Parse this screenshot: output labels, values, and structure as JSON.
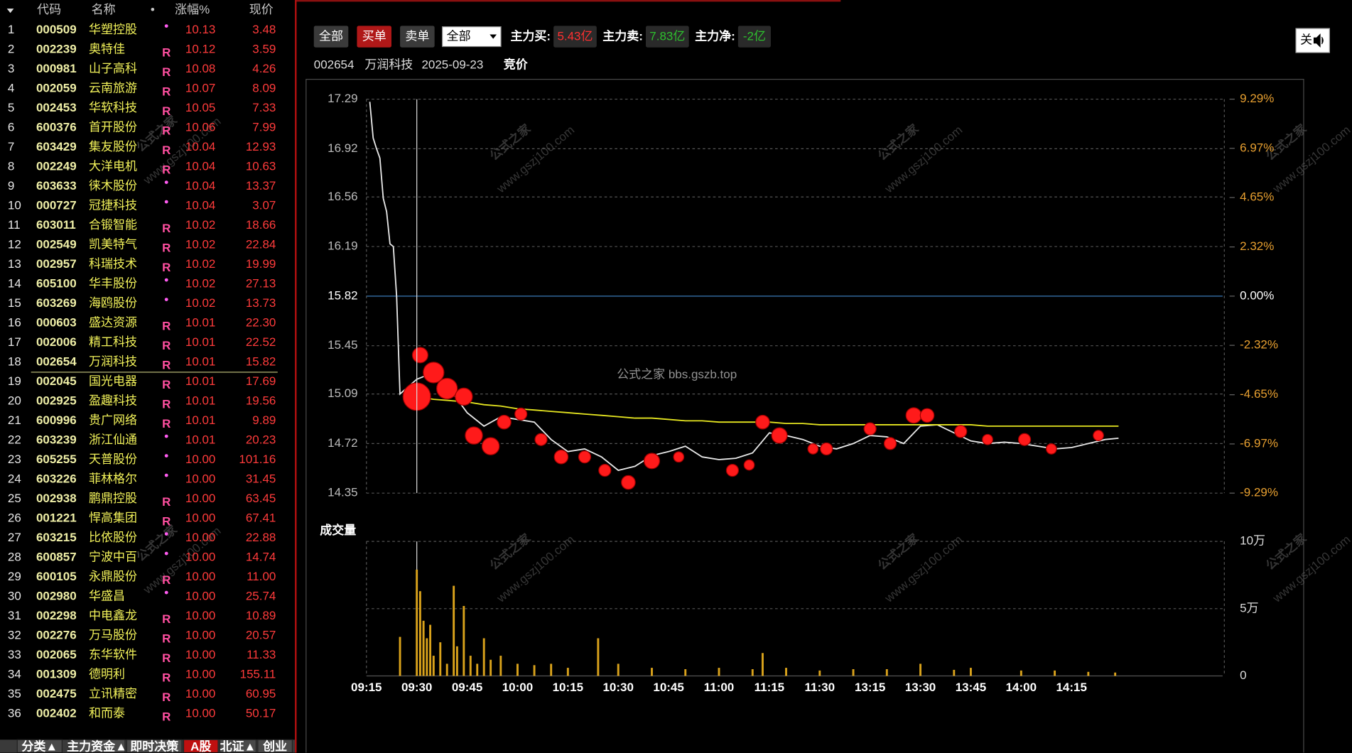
{
  "stock_list": {
    "header": [
      "代码",
      "名称",
      "•",
      "涨幅%",
      "现价"
    ],
    "rows": [
      [
        1,
        "000509",
        "华塑控股",
        "•",
        "10.13",
        "3.48"
      ],
      [
        2,
        "002239",
        "奥特佳",
        "R",
        "10.12",
        "3.59"
      ],
      [
        3,
        "000981",
        "山子高科",
        "R",
        "10.08",
        "4.26"
      ],
      [
        4,
        "002059",
        "云南旅游",
        "R",
        "10.07",
        "8.09"
      ],
      [
        5,
        "002453",
        "华软科技",
        "R",
        "10.05",
        "7.33"
      ],
      [
        6,
        "600376",
        "首开股份",
        "R",
        "10.06",
        "7.99"
      ],
      [
        7,
        "603429",
        "集友股份",
        "R",
        "10.04",
        "12.93"
      ],
      [
        8,
        "002249",
        "大洋电机",
        "R",
        "10.04",
        "10.63"
      ],
      [
        9,
        "603633",
        "徕木股份",
        "•",
        "10.04",
        "13.37"
      ],
      [
        10,
        "000727",
        "冠捷科技",
        "•",
        "10.04",
        "3.07"
      ],
      [
        11,
        "603011",
        "合锻智能",
        "R",
        "10.02",
        "18.66"
      ],
      [
        12,
        "002549",
        "凯美特气",
        "R",
        "10.02",
        "22.84"
      ],
      [
        13,
        "002957",
        "科瑞技术",
        "R",
        "10.02",
        "19.99"
      ],
      [
        14,
        "605100",
        "华丰股份",
        "•",
        "10.02",
        "27.13"
      ],
      [
        15,
        "603269",
        "海鸥股份",
        "•",
        "10.02",
        "13.73"
      ],
      [
        16,
        "000603",
        "盛达资源",
        "R",
        "10.01",
        "22.30"
      ],
      [
        17,
        "002006",
        "精工科技",
        "R",
        "10.01",
        "22.52"
      ],
      [
        18,
        "002654",
        "万润科技",
        "R",
        "10.01",
        "15.82"
      ],
      [
        19,
        "002045",
        "国光电器",
        "R",
        "10.01",
        "17.69"
      ],
      [
        20,
        "002925",
        "盈趣科技",
        "R",
        "10.01",
        "19.56"
      ],
      [
        21,
        "600996",
        "贵广网络",
        "R",
        "10.01",
        "9.89"
      ],
      [
        22,
        "603239",
        "浙江仙通",
        "•",
        "10.01",
        "20.23"
      ],
      [
        23,
        "605255",
        "天普股份",
        "•",
        "10.00",
        "101.16"
      ],
      [
        24,
        "603226",
        "菲林格尔",
        "•",
        "10.00",
        "31.45"
      ],
      [
        25,
        "002938",
        "鹏鼎控股",
        "R",
        "10.00",
        "63.45"
      ],
      [
        26,
        "001221",
        "悍高集团",
        "R",
        "10.00",
        "67.41"
      ],
      [
        27,
        "603215",
        "比依股份",
        "•",
        "10.00",
        "22.88"
      ],
      [
        28,
        "600857",
        "宁波中百",
        "•",
        "10.00",
        "14.74"
      ],
      [
        29,
        "600105",
        "永鼎股份",
        "R",
        "10.00",
        "11.00"
      ],
      [
        30,
        "002980",
        "华盛昌",
        "•",
        "10.00",
        "25.74"
      ],
      [
        31,
        "002298",
        "中电鑫龙",
        "R",
        "10.00",
        "10.89"
      ],
      [
        32,
        "002276",
        "万马股份",
        "R",
        "10.00",
        "20.57"
      ],
      [
        33,
        "002065",
        "东华软件",
        "R",
        "10.00",
        "11.33"
      ],
      [
        34,
        "001309",
        "德明利",
        "R",
        "10.00",
        "155.11"
      ],
      [
        35,
        "002475",
        "立讯精密",
        "R",
        "10.00",
        "60.95"
      ],
      [
        36,
        "002402",
        "和而泰",
        "R",
        "10.00",
        "50.17"
      ]
    ]
  },
  "tabs": [
    "分类▲",
    "主力资金▲",
    "即时决策",
    "A股",
    "北证▲",
    "创业"
  ],
  "toolbar": {
    "buttons": [
      "全部",
      "买单",
      "卖单"
    ],
    "select": "全部",
    "stats": [
      {
        "label": "主力买:",
        "value": "5.43亿"
      },
      {
        "label": "主力卖:",
        "value": "7.83亿"
      },
      {
        "label": "主力净:",
        "value": "-2亿"
      }
    ],
    "close": "关"
  },
  "info": {
    "code": "002654",
    "name": "万润科技",
    "date": "2025-09-23",
    "mode": "竞价"
  },
  "watermark": {
    "center": "公式之家 bbs.gszb.top",
    "brand": "公式之家",
    "site": "www.gszj100.com"
  },
  "chart_data": [
    {
      "type": "line",
      "xlim": [
        "09:15",
        "15:00"
      ],
      "ylim": [
        14.35,
        17.29
      ],
      "yticks": [
        14.35,
        14.72,
        15.09,
        15.45,
        15.82,
        16.19,
        16.56,
        16.92,
        17.29
      ],
      "y2lim": [
        -9.29,
        9.29
      ],
      "y2ticks": [
        {
          "value": -9.29,
          "label": "-9.29%"
        },
        {
          "value": -6.97,
          "label": "-6.97%"
        },
        {
          "value": -4.65,
          "label": "-4.65%"
        },
        {
          "value": -2.32,
          "label": "-2.32%"
        },
        {
          "value": 0,
          "label": "0.00%"
        },
        {
          "value": 2.32,
          "label": "2.32%"
        },
        {
          "value": 4.65,
          "label": "4.65%"
        },
        {
          "value": 6.97,
          "label": "6.97%"
        },
        {
          "value": 9.29,
          "label": "9.29%"
        }
      ],
      "grid": true,
      "x": [
        "09:16",
        "09:17",
        "09:18",
        "09:19",
        "09:20",
        "09:21",
        "09:22",
        "09:23",
        "09:24",
        "09:25",
        "09:30",
        "09:35",
        "09:40",
        "09:45",
        "09:50",
        "09:55",
        "10:00",
        "10:05",
        "10:10",
        "10:15",
        "10:20",
        "10:25",
        "10:30",
        "10:35",
        "10:40",
        "10:45",
        "10:50",
        "10:55",
        "11:00",
        "11:05",
        "11:10",
        "11:15",
        "11:20",
        "11:25",
        "11:30",
        "13:05",
        "13:10",
        "13:15",
        "13:20",
        "13:25",
        "13:30",
        "13:35",
        "13:40",
        "13:45",
        "13:50",
        "13:55",
        "14:00",
        "14:05",
        "14:10",
        "14:15",
        "14:20",
        "14:25",
        "14:29"
      ],
      "series": [
        {
          "color": "#e8e8e8",
          "values": [
            17.27,
            17.0,
            16.92,
            16.85,
            16.55,
            16.45,
            16.21,
            16.19,
            15.82,
            15.09,
            15.2,
            15.25,
            15.12,
            14.95,
            14.85,
            14.92,
            14.9,
            14.88,
            14.75,
            14.66,
            14.68,
            14.62,
            14.52,
            14.55,
            14.63,
            14.66,
            14.7,
            14.62,
            14.6,
            14.61,
            14.65,
            14.8,
            14.78,
            14.75,
            14.7,
            14.68,
            14.72,
            14.78,
            14.77,
            14.72,
            14.85,
            14.86,
            14.8,
            14.74,
            14.72,
            14.73,
            14.72,
            14.7,
            14.68,
            14.69,
            14.72,
            14.75,
            14.76
          ]
        },
        {
          "color": "#e6e620",
          "values": [
            null,
            null,
            null,
            null,
            null,
            null,
            null,
            null,
            null,
            null,
            15.07,
            15.05,
            15.04,
            15.03,
            15.01,
            15.0,
            14.98,
            14.97,
            14.96,
            14.95,
            14.94,
            14.93,
            14.92,
            14.91,
            14.91,
            14.9,
            14.89,
            14.89,
            14.88,
            14.88,
            14.88,
            14.88,
            14.87,
            14.87,
            14.86,
            14.86,
            14.86,
            14.86,
            14.86,
            14.86,
            14.86,
            14.86,
            14.86,
            14.86,
            14.85,
            14.85,
            14.85,
            14.85,
            14.85,
            14.85,
            14.85,
            14.85,
            14.85
          ]
        }
      ],
      "bubbles": {
        "color": "#ff1a1a",
        "x": [
          "09:30",
          "09:31",
          "09:35",
          "09:39",
          "09:44",
          "09:47",
          "09:52",
          "09:56",
          "10:01",
          "10:07",
          "10:13",
          "10:20",
          "10:26",
          "10:33",
          "10:40",
          "10:48",
          "11:04",
          "11:09",
          "11:13",
          "11:18",
          "11:28",
          "13:02",
          "13:15",
          "13:21",
          "13:28",
          "13:32",
          "13:42",
          "13:50",
          "14:01",
          "14:09",
          "14:23"
        ],
        "values": [
          15.07,
          15.38,
          15.25,
          15.13,
          15.07,
          14.78,
          14.7,
          14.88,
          14.94,
          14.75,
          14.62,
          14.62,
          14.52,
          14.43,
          14.59,
          14.62,
          14.52,
          14.56,
          14.88,
          14.78,
          14.68,
          14.68,
          14.83,
          14.72,
          14.93,
          14.93,
          14.81,
          14.75,
          14.75,
          14.68,
          14.78
        ],
        "sizes": [
          16,
          9,
          12,
          12,
          10,
          10,
          10,
          8,
          7,
          7,
          8,
          7,
          7,
          8,
          9,
          6,
          7,
          6,
          8,
          9,
          6,
          7,
          7,
          7,
          9,
          8,
          7,
          6,
          7,
          6,
          6
        ]
      }
    },
    {
      "type": "bar",
      "title": "成交量",
      "color": "#d9a21b",
      "xlim": [
        "09:15",
        "15:00"
      ],
      "ylim": [
        0,
        100000
      ],
      "yticks": [
        0,
        {
          "value": 50000,
          "label": "5万"
        },
        {
          "value": 100000,
          "label": "10万"
        }
      ],
      "xticks": [
        "09:15",
        "09:30",
        "09:45",
        "10:00",
        "10:15",
        "10:30",
        "10:45",
        "11:00",
        "11:15",
        "11:30",
        "13:15",
        "13:30",
        "13:45",
        "14:00",
        "14:15"
      ],
      "grid": true,
      "x": [
        "09:25",
        "09:30",
        "09:31",
        "09:32",
        "09:33",
        "09:34",
        "09:35",
        "09:37",
        "09:39",
        "09:41",
        "09:42",
        "09:44",
        "09:46",
        "09:48",
        "09:50",
        "09:52",
        "09:55",
        "10:00",
        "10:05",
        "10:10",
        "10:15",
        "10:24",
        "10:30",
        "10:40",
        "10:50",
        "11:00",
        "11:10",
        "11:13",
        "11:20",
        "11:30",
        "13:10",
        "13:20",
        "13:30",
        "13:40",
        "13:45",
        "14:00",
        "14:10",
        "14:20",
        "14:28"
      ],
      "values": [
        29000,
        79000,
        63000,
        41000,
        28000,
        38000,
        15000,
        25000,
        9000,
        67000,
        22000,
        52000,
        15000,
        9000,
        28000,
        12000,
        15000,
        9000,
        8000,
        9000,
        6000,
        28000,
        9000,
        6000,
        5000,
        6000,
        5000,
        17000,
        6000,
        4000,
        5000,
        5000,
        9000,
        4500,
        6000,
        4000,
        4000,
        3000,
        2500
      ]
    }
  ]
}
